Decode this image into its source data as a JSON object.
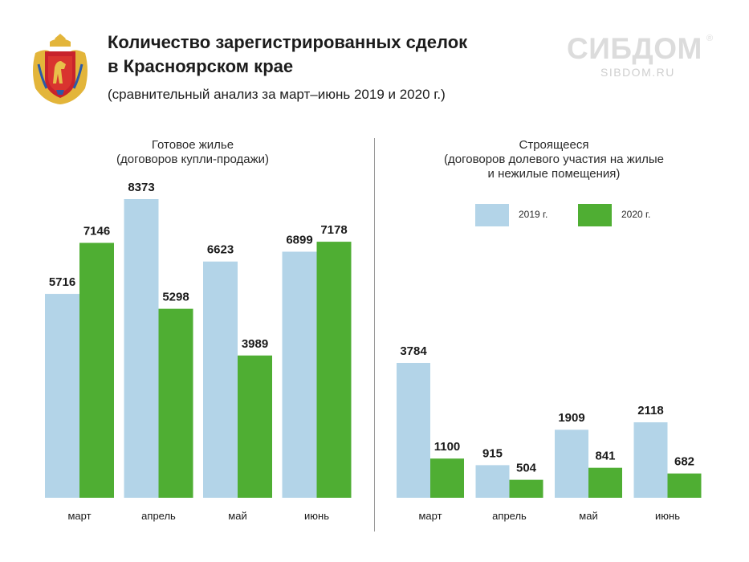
{
  "header": {
    "title_line1": "Количество зарегистрированных сделок",
    "title_line2": "в Красноярском крае",
    "subtitle": "(сравнительный анализ за март–июнь 2019 и 2020 г.)"
  },
  "brand": {
    "name": "СИБДОМ",
    "registered_mark": "®",
    "url": "SIBDOM.RU"
  },
  "colors": {
    "series_2019": "#b3d4e8",
    "series_2020": "#4fae33",
    "divider": "#9a9a9a"
  },
  "legend": [
    {
      "label": "2019 г.",
      "color": "#b3d4e8"
    },
    {
      "label": "2020 г.",
      "color": "#4fae33"
    }
  ],
  "chart_data": [
    {
      "type": "bar",
      "title_lines": [
        "Готовое жилье",
        "(договоров купли-продажи)"
      ],
      "categories": [
        "март",
        "апрель",
        "май",
        "июнь"
      ],
      "series": [
        {
          "name": "2019 г.",
          "values": [
            5716,
            8373,
            6623,
            6899
          ]
        },
        {
          "name": "2020 г.",
          "values": [
            7146,
            5298,
            3989,
            7178
          ]
        }
      ],
      "ylim": [
        0,
        8373
      ],
      "grid": false
    },
    {
      "type": "bar",
      "title_lines": [
        "Строящееся",
        "(договоров долевого участия на жилые",
        "и нежилые помещения)"
      ],
      "categories": [
        "март",
        "апрель",
        "май",
        "июнь"
      ],
      "series": [
        {
          "name": "2019 г.",
          "values": [
            3784,
            915,
            1909,
            2118
          ]
        },
        {
          "name": "2020 г.",
          "values": [
            1100,
            504,
            841,
            682
          ]
        }
      ],
      "ylim": [
        0,
        3784
      ],
      "grid": false
    }
  ]
}
